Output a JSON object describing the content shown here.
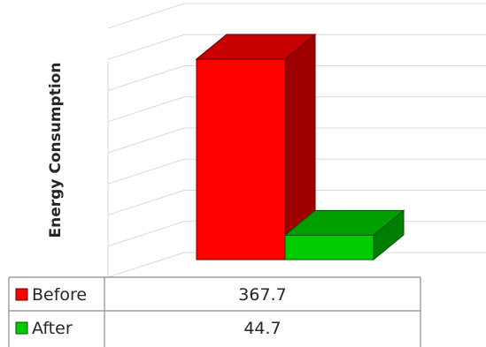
{
  "chart_data": {
    "type": "bar",
    "ylabel": "Energy  Consumption",
    "categories": [
      ""
    ],
    "series": [
      {
        "name": "Before",
        "values": [
          367.7
        ],
        "color": "#ff0000"
      },
      {
        "name": "After",
        "values": [
          44.7
        ],
        "color": "#00cc00"
      }
    ],
    "ylim": [
      0,
      400
    ],
    "grid": true,
    "legend": "data-table"
  }
}
